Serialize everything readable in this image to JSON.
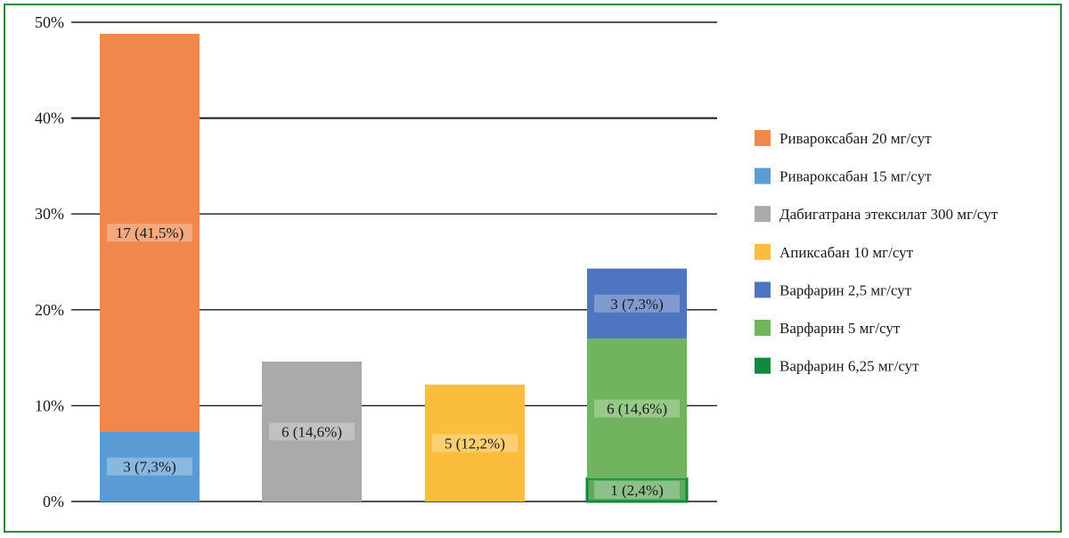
{
  "chart_data": {
    "type": "bar",
    "stacked": true,
    "categories": [
      "",
      "",
      "",
      ""
    ],
    "ylim": [
      0,
      50
    ],
    "y_ticks": [
      {
        "value": 0,
        "label": "0%"
      },
      {
        "value": 10,
        "label": "10%"
      },
      {
        "value": 20,
        "label": "20%"
      },
      {
        "value": 30,
        "label": "30%"
      },
      {
        "value": 40,
        "label": "40%"
      },
      {
        "value": 50,
        "label": "50%"
      }
    ],
    "grid": true,
    "legend_position": "right",
    "series": [
      {
        "name": "Ривароксабан 20 мг/сут",
        "color": "#F0884D",
        "values": [
          41.5,
          0,
          0,
          0
        ],
        "labels": [
          "17 (41,5%)",
          "",
          "",
          ""
        ]
      },
      {
        "name": "Ривароксабан 15 мг/сут",
        "color": "#5B9BD5",
        "values": [
          7.3,
          0,
          0,
          0
        ],
        "labels": [
          "3 (7,3%)",
          "",
          "",
          ""
        ]
      },
      {
        "name": "Дабигатрана этексилат 300 мг/сут",
        "color": "#A9AAAC",
        "values": [
          0,
          14.6,
          0,
          0
        ],
        "labels": [
          "",
          "6 (14,6%)",
          "",
          ""
        ]
      },
      {
        "name": "Апиксабан 10 мг/сут",
        "color": "#FBBD3C",
        "values": [
          0,
          0,
          12.2,
          0
        ],
        "labels": [
          "",
          "",
          "5 (12,2%)",
          ""
        ]
      },
      {
        "name": "Варфарин 2,5 мг/сут",
        "color": "#4F74C0",
        "values": [
          0,
          0,
          0,
          7.3
        ],
        "labels": [
          "",
          "",
          "",
          "3 (7,3%)"
        ]
      },
      {
        "name": "Варфарин 5 мг/сут",
        "color": "#71B45E",
        "values": [
          0,
          0,
          0,
          14.6
        ],
        "labels": [
          "",
          "",
          "",
          "6 (14,6%)"
        ]
      },
      {
        "name": "Варфарин 6,25 мг/сут",
        "color": "#0E8A3E",
        "values": [
          0,
          0,
          0,
          2.4
        ],
        "labels": [
          "",
          "",
          "",
          "1 (2,4%)"
        ]
      }
    ],
    "stack_order": [
      [
        "Ривароксабан 15 мг/сут",
        "Ривароксабан 20 мг/сут"
      ],
      [
        "Дабигатрана этексилат 300 мг/сут"
      ],
      [
        "Апиксабан 10 мг/сут"
      ],
      [
        "Варфарин 6,25 мг/сут",
        "Варфарин 5 мг/сут",
        "Варфарин 2,5 мг/сут"
      ]
    ]
  }
}
